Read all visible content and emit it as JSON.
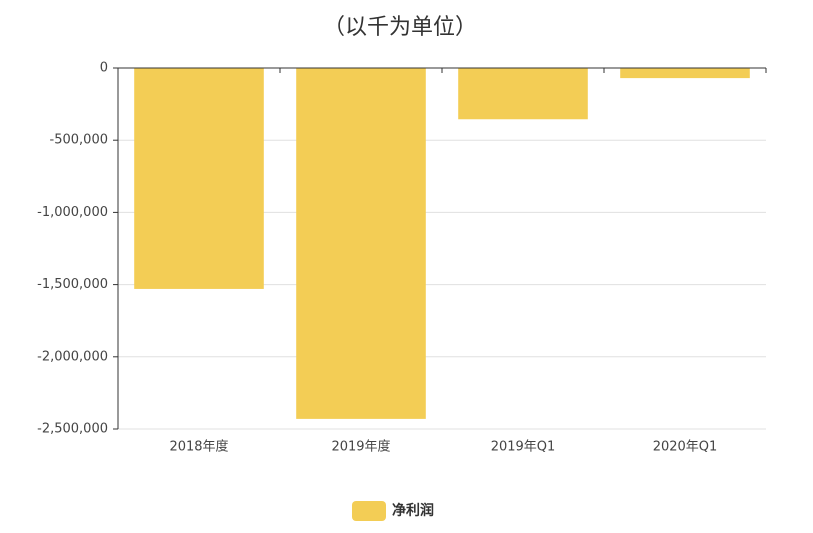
{
  "chart_data": {
    "type": "bar",
    "title": "（以千为单位）",
    "categories": [
      "2018年度",
      "2019年度",
      "2019年Q1",
      "2020年Q1"
    ],
    "series": [
      {
        "name": "净利润",
        "color": "#f3cd55",
        "values": [
          -1530000,
          -2430000,
          -355000,
          -70000
        ]
      }
    ],
    "ylim": [
      -2500000,
      0
    ],
    "yticks": [
      0,
      {
        "value": -500000,
        "label": "-500,000"
      },
      {
        "value": -1000000,
        "label": "-1,000,000"
      },
      {
        "value": -1500000,
        "label": "-1,500,000"
      },
      {
        "value": -2000000,
        "label": "-2,000,000"
      },
      {
        "value": -2500000,
        "label": "-2,500,000"
      }
    ],
    "grid": true,
    "legend": "bottom"
  }
}
